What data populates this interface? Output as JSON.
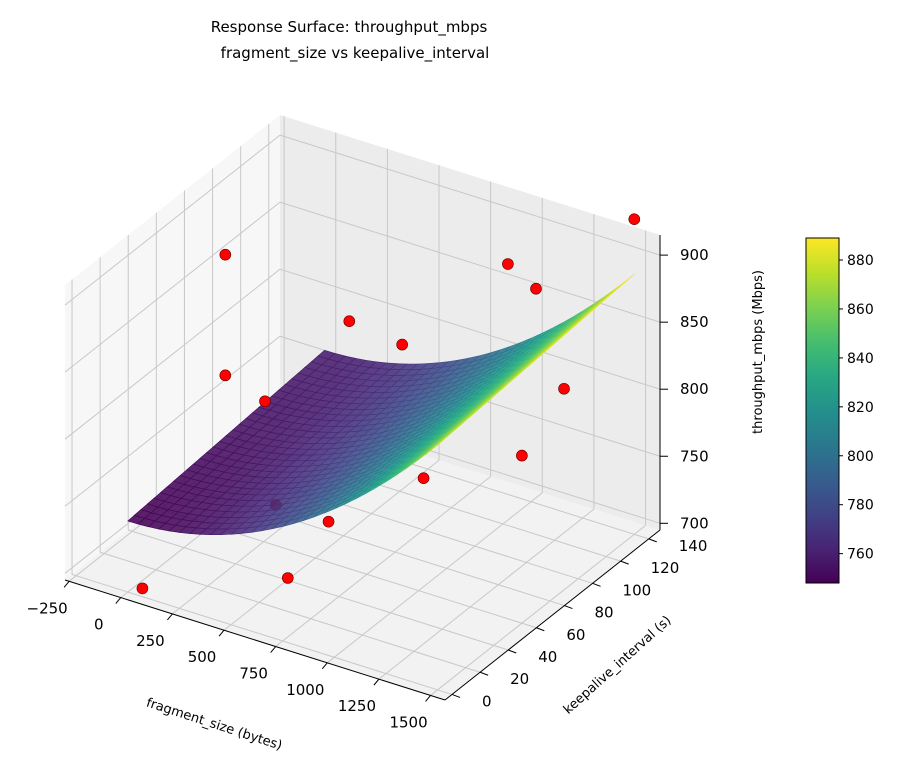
{
  "chart_data": {
    "type": "surface3d",
    "title": "Response Surface: throughput_mbps",
    "subtitle": "fragment_size vs keepalive_interval",
    "xlabel": "fragment_size (bytes)",
    "ylabel": "keepalive_interval (s)",
    "zlabel": "throughput_mbps (Mbps)",
    "xlim": [
      -270,
      1570
    ],
    "ylim": [
      -5,
      148
    ],
    "zlim": [
      695,
      915
    ],
    "xticks": [
      -250,
      0,
      250,
      500,
      750,
      1000,
      1250,
      1500
    ],
    "yticks": [
      0,
      20,
      40,
      60,
      80,
      100,
      120,
      140
    ],
    "zticks": [
      700,
      750,
      800,
      850,
      900
    ],
    "grid": true,
    "colormap": "viridis",
    "colorbar": {
      "range": [
        748,
        889
      ],
      "ticks": [
        760,
        780,
        800,
        820,
        840,
        860,
        880
      ]
    },
    "surface": {
      "x_range": [
        0,
        1500
      ],
      "y_range": [
        0,
        140
      ],
      "z_range": [
        748,
        889
      ]
    },
    "points_color": "#ff0000",
    "points": [
      {
        "x": 64,
        "y": 1,
        "z": 700
      },
      {
        "x": 64,
        "y": 60,
        "z": 900
      },
      {
        "x": 64,
        "y": 60,
        "z": 810
      },
      {
        "x": 256,
        "y": 60,
        "z": 800
      },
      {
        "x": 256,
        "y": 120,
        "z": 810
      },
      {
        "x": 512,
        "y": 30,
        "z": 760
      },
      {
        "x": 512,
        "y": 120,
        "z": 805
      },
      {
        "x": 768,
        "y": 30,
        "z": 760
      },
      {
        "x": 768,
        "y": 1,
        "z": 742
      },
      {
        "x": 1024,
        "y": 60,
        "z": 780
      },
      {
        "x": 1024,
        "y": 120,
        "z": 890
      },
      {
        "x": 1024,
        "y": 140,
        "z": 855
      },
      {
        "x": 1500,
        "y": 60,
        "z": 820
      },
      {
        "x": 1500,
        "y": 90,
        "z": 845
      },
      {
        "x": 1500,
        "y": 140,
        "z": 930
      }
    ]
  }
}
